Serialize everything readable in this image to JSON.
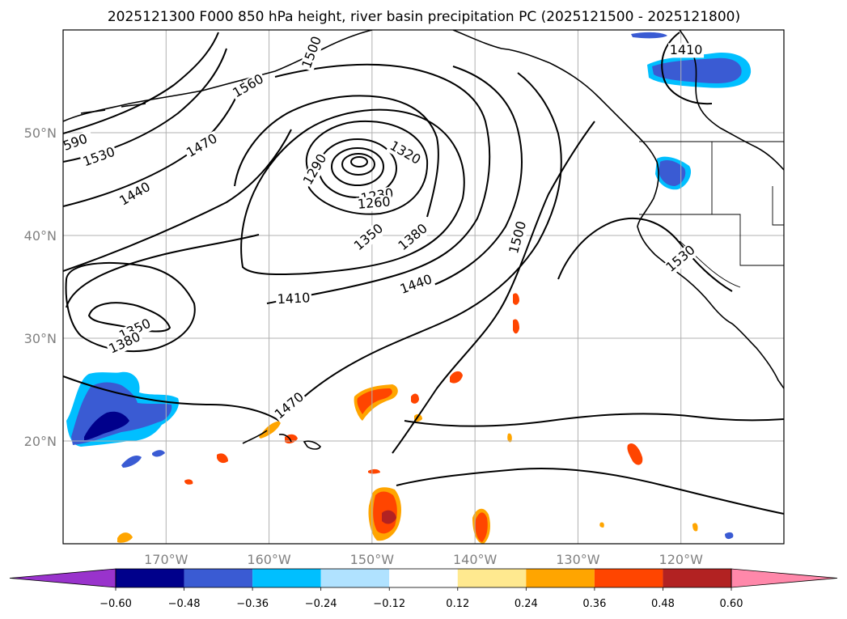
{
  "title": "2025121300 F000 850 hPa height, river basin precipitation PC (2025121500 - 2025121800)",
  "map": {
    "projection": "PlateCarree",
    "lon_range": [
      -180,
      -110
    ],
    "lat_range": [
      10,
      60
    ],
    "lon_ticks": [
      {
        "lon": -170,
        "label": "170°W"
      },
      {
        "lon": -160,
        "label": "160°W"
      },
      {
        "lon": -150,
        "label": "150°W"
      },
      {
        "lon": -140,
        "label": "140°W"
      },
      {
        "lon": -130,
        "label": "130°W"
      },
      {
        "lon": -120,
        "label": "120°W"
      }
    ],
    "lat_ticks": [
      {
        "lat": 50,
        "label": "50°N"
      },
      {
        "lat": 40,
        "label": "40°N"
      },
      {
        "lat": 30,
        "label": "30°N"
      },
      {
        "lat": 20,
        "label": "20°N"
      }
    ],
    "gridlines": true,
    "grid_color": "#b0b0b0"
  },
  "contours": {
    "field": "850 hPa geopotential height",
    "units": "m",
    "labels": [
      {
        "text": "1230",
        "lon": -149.5,
        "lat": 43.8,
        "angle": -10
      },
      {
        "text": "1260",
        "lon": -149.8,
        "lat": 43.1,
        "angle": -5
      },
      {
        "text": "1290",
        "lon": -155.5,
        "lat": 46.4,
        "angle": -60
      },
      {
        "text": "1320",
        "lon": -146.8,
        "lat": 48.0,
        "angle": 30
      },
      {
        "text": "1350",
        "lon": -150.3,
        "lat": 39.8,
        "angle": -40
      },
      {
        "text": "1380",
        "lon": -146.0,
        "lat": 39.8,
        "angle": -40
      },
      {
        "text": "1410",
        "lon": -157.6,
        "lat": 33.8,
        "angle": -3
      },
      {
        "text": "1440",
        "lon": -145.7,
        "lat": 35.2,
        "angle": -20
      },
      {
        "text": "1470",
        "lon": -158.0,
        "lat": 23.4,
        "angle": -40
      },
      {
        "text": "1500",
        "lon": -135.8,
        "lat": 39.8,
        "angle": -75
      },
      {
        "text": "1530",
        "lon": -176.5,
        "lat": 47.6,
        "angle": -20
      },
      {
        "text": "1440",
        "lon": -173.0,
        "lat": 44.0,
        "angle": -30
      },
      {
        "text": "1470",
        "lon": -166.5,
        "lat": 48.7,
        "angle": -30
      },
      {
        "text": "1560",
        "lon": -162.0,
        "lat": 54.5,
        "angle": -30
      },
      {
        "text": "1530",
        "lon": -120.0,
        "lat": 37.7,
        "angle": -40
      },
      {
        "text": "1410",
        "lon": -119.5,
        "lat": 58.0,
        "angle": 0
      },
      {
        "text": "1350",
        "lon": -173.0,
        "lat": 30.8,
        "angle": -25
      },
      {
        "text": "1380",
        "lon": -174.0,
        "lat": 29.5,
        "angle": -25
      },
      {
        "text": "590",
        "lon": -178.8,
        "lat": 49.0,
        "angle": -20
      },
      {
        "text": "1500",
        "lon": -155.8,
        "lat": 57.8,
        "angle": -70
      }
    ]
  },
  "precipitation_pc": {
    "colors": {
      "le_-0.60": "#9933cc",
      "-0.60_-0.48": "#00008b",
      "-0.48_-0.36": "#3a5bd3",
      "-0.36_-0.24": "#00bfff",
      "-0.24_-0.12": "#b0e2ff",
      "-0.12_0.12": "#ffffff",
      "0.12_0.24": "#ffe98f",
      "0.24_0.36": "#ffa500",
      "0.36_0.48": "#ff4500",
      "0.48_0.60": "#b22222",
      "ge_0.60": "#ff88aa"
    }
  },
  "colorbar": {
    "ticks": [
      "−0.60",
      "−0.48",
      "−0.36",
      "−0.24",
      "−0.12",
      "0.12",
      "0.24",
      "0.36",
      "0.48",
      "0.60"
    ],
    "colors": [
      "#9933cc",
      "#00008b",
      "#3a5bd3",
      "#00bfff",
      "#b0e2ff",
      "#ffffff",
      "#ffe98f",
      "#ffa500",
      "#ff4500",
      "#b22222",
      "#ff88aa"
    ],
    "extend": "both"
  }
}
